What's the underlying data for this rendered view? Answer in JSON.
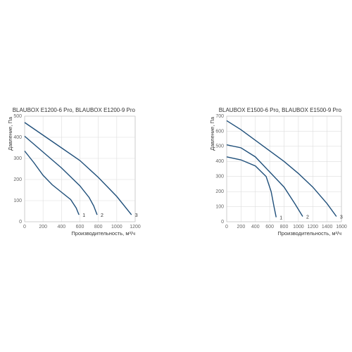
{
  "chart_data": [
    {
      "type": "line",
      "title": "BLAUBOX E1200-6 Pro, BLAUBOX E1200-9 Pro",
      "xlabel": "Производительность, м³/ч",
      "ylabel": "Давление, Па",
      "xlim": [
        0,
        1200
      ],
      "ylim": [
        0,
        500
      ],
      "xticks": [
        0,
        200,
        400,
        600,
        800,
        1000,
        1200
      ],
      "yticks": [
        0,
        100,
        200,
        300,
        400,
        500
      ],
      "grid": true,
      "series": [
        {
          "name": "1",
          "color": "#1f4f7a",
          "x": [
            0,
            100,
            200,
            300,
            400,
            500,
            560,
            590
          ],
          "values": [
            335,
            280,
            220,
            175,
            140,
            105,
            65,
            33
          ]
        },
        {
          "name": "2",
          "color": "#1f4f7a",
          "x": [
            0,
            200,
            400,
            600,
            700,
            750,
            787
          ],
          "values": [
            405,
            330,
            255,
            170,
            115,
            75,
            33
          ]
        },
        {
          "name": "3",
          "color": "#1f4f7a",
          "x": [
            0,
            200,
            400,
            600,
            800,
            1000,
            1160
          ],
          "values": [
            470,
            410,
            350,
            290,
            210,
            120,
            33
          ]
        }
      ]
    },
    {
      "type": "line",
      "title": "BLAUBOX E1500-6 Pro, BLAUBOX E1500-9 Pro",
      "xlabel": "Производительность, м³/ч",
      "ylabel": "Давление, Па",
      "xlim": [
        0,
        1600
      ],
      "ylim": [
        0,
        700
      ],
      "xticks": [
        0,
        200,
        400,
        600,
        800,
        1000,
        1200,
        1400,
        1600
      ],
      "yticks": [
        0,
        100,
        200,
        300,
        400,
        500,
        600,
        700
      ],
      "grid": true,
      "series": [
        {
          "name": "1",
          "color": "#1f4f7a",
          "x": [
            0,
            200,
            400,
            550,
            620,
            660,
            690
          ],
          "values": [
            430,
            410,
            370,
            300,
            200,
            100,
            30
          ]
        },
        {
          "name": "2",
          "color": "#1f4f7a",
          "x": [
            0,
            200,
            400,
            600,
            800,
            950,
            1060
          ],
          "values": [
            510,
            490,
            430,
            330,
            230,
            120,
            35
          ]
        },
        {
          "name": "3",
          "color": "#1f4f7a",
          "x": [
            0,
            200,
            400,
            600,
            800,
            1000,
            1200,
            1400,
            1530
          ],
          "values": [
            670,
            610,
            540,
            470,
            400,
            320,
            230,
            120,
            35
          ]
        }
      ]
    }
  ]
}
